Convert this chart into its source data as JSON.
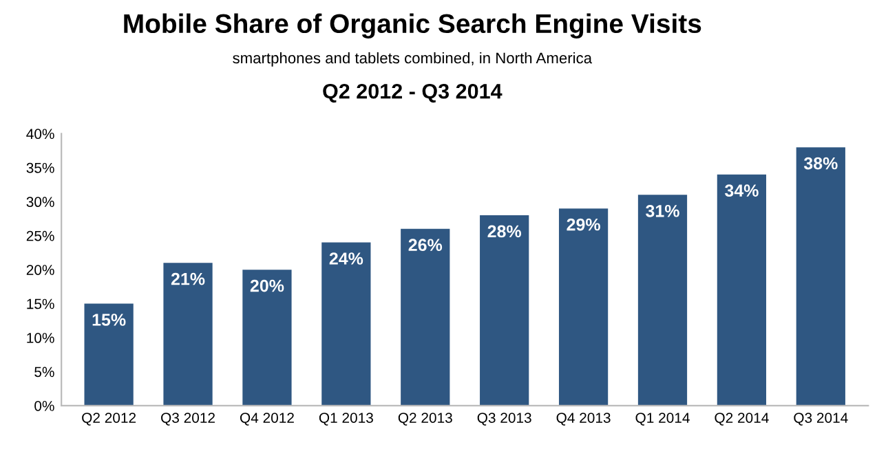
{
  "chart_data": {
    "type": "bar",
    "title": "Mobile Share of Organic Search Engine Visits",
    "subtitle": "smartphones and tablets combined, in North America",
    "annotations": [
      "Q2 2012 - Q3 2014"
    ],
    "categories": [
      "Q2 2012",
      "Q3 2012",
      "Q4 2012",
      "Q1 2013",
      "Q2 2013",
      "Q3 2013",
      "Q4 2013",
      "Q1 2014",
      "Q2 2014",
      "Q3 2014"
    ],
    "values": [
      15,
      21,
      20,
      24,
      26,
      28,
      29,
      31,
      34,
      38
    ],
    "value_labels": [
      "15%",
      "21%",
      "20%",
      "24%",
      "26%",
      "28%",
      "29%",
      "31%",
      "34%",
      "38%"
    ],
    "color": "#2f5782",
    "ylim": [
      0,
      40
    ],
    "yticks": [
      {
        "value": 0,
        "label": "0%"
      },
      {
        "value": 5,
        "label": "5%"
      },
      {
        "value": 10,
        "label": "10%"
      },
      {
        "value": 15,
        "label": "15%"
      },
      {
        "value": 20,
        "label": "20%"
      },
      {
        "value": 25,
        "label": "25%"
      },
      {
        "value": 30,
        "label": "30%"
      },
      {
        "value": 35,
        "label": "35%"
      },
      {
        "value": 40,
        "label": "40%"
      }
    ],
    "grid": false
  }
}
